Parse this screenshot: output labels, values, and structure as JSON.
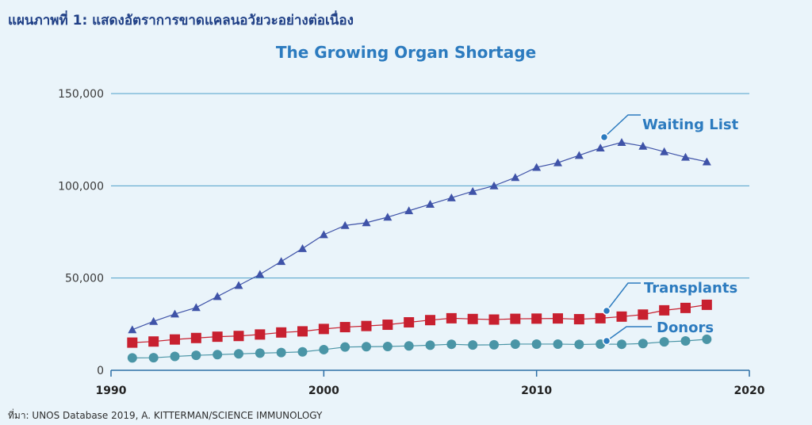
{
  "heading": "แผนภาพที่ 1: แสดงอัตราการขาดแคลนอวัยวะอย่างต่อเนื่อง",
  "source": "ที่มา: UNOS Database 2019, A. KITTERMAN/SCIENCE IMMUNOLOGY",
  "chart_data": {
    "type": "line",
    "title": "The Growing Organ Shortage",
    "xlabel": "",
    "ylabel": "",
    "xlim": [
      1990,
      2020
    ],
    "ylim": [
      0,
      150000
    ],
    "x_ticks": [
      1990,
      2000,
      2010,
      2020
    ],
    "x_tick_labels": [
      "1990",
      "2000",
      "2010",
      "2020"
    ],
    "y_ticks": [
      0,
      50000,
      100000,
      150000
    ],
    "y_tick_labels": [
      "0",
      "50,000",
      "100,000",
      "150,000"
    ],
    "grid": "horizontal",
    "x": [
      1991,
      1992,
      1993,
      1994,
      1995,
      1996,
      1997,
      1998,
      1999,
      2000,
      2001,
      2002,
      2003,
      2004,
      2005,
      2006,
      2007,
      2008,
      2009,
      2010,
      2011,
      2012,
      2013,
      2014,
      2015,
      2016,
      2017,
      2018
    ],
    "series": [
      {
        "name": "Waiting List",
        "marker": "triangle",
        "color": "#3f53a8",
        "label_color": "#2c7bbf",
        "values": [
          22000,
          26500,
          30500,
          34000,
          40000,
          46000,
          52000,
          59000,
          66000,
          73500,
          78500,
          80000,
          83000,
          86500,
          90000,
          93500,
          97000,
          100000,
          104500,
          110000,
          112500,
          116500,
          120500,
          123500,
          121500,
          118500,
          115500,
          113000
        ]
      },
      {
        "name": "Transplants",
        "marker": "square",
        "color": "#c8202f",
        "label_color": "#2c7bbf",
        "values": [
          15000,
          15600,
          16700,
          17500,
          18200,
          18600,
          19400,
          20500,
          21100,
          22400,
          23400,
          24000,
          24700,
          26000,
          27200,
          28200,
          27800,
          27500,
          27900,
          28000,
          28100,
          27700,
          28200,
          29100,
          30200,
          32500,
          33800,
          35500
        ]
      },
      {
        "name": "Donors",
        "marker": "circle",
        "color": "#4a95a6",
        "label_color": "#2c7bbf",
        "values": [
          6700,
          6800,
          7500,
          8100,
          8500,
          8900,
          9300,
          9600,
          10000,
          11200,
          12600,
          12800,
          12900,
          13200,
          13600,
          14100,
          13700,
          13800,
          14200,
          14200,
          14200,
          14000,
          14200,
          14100,
          14500,
          15400,
          15900,
          16800
        ]
      }
    ]
  }
}
